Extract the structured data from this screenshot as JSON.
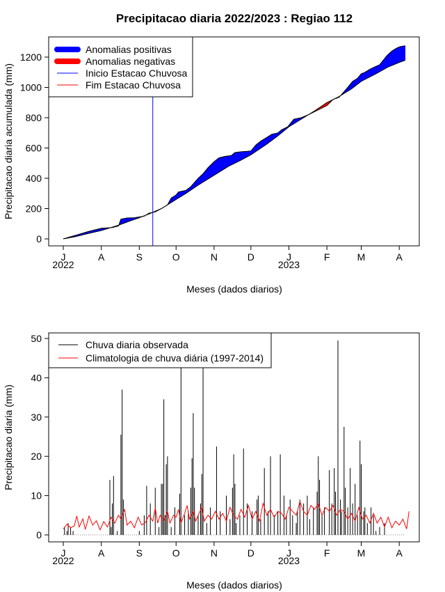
{
  "chart_data": [
    {
      "type": "area",
      "title": "Precipitacao diaria 2022/2023 : Regiao 112",
      "xlabel": "Meses (dados diarios)",
      "ylabel": "Precipitacao diaria acumulada (mm)",
      "ylim": [
        0,
        1300
      ],
      "yticks": [
        0,
        200,
        400,
        600,
        800,
        1000,
        1200
      ],
      "xlim_days": [
        0,
        283
      ],
      "month_ticks": [
        {
          "label": "J",
          "day": 0
        },
        {
          "label": "A",
          "day": 31
        },
        {
          "label": "S",
          "day": 62
        },
        {
          "label": "O",
          "day": 92
        },
        {
          "label": "N",
          "day": 123
        },
        {
          "label": "D",
          "day": 153
        },
        {
          "label": "J",
          "day": 184
        },
        {
          "label": "F",
          "day": 215
        },
        {
          "label": "M",
          "day": 243
        },
        {
          "label": "A",
          "day": 274
        }
      ],
      "year_labels": [
        {
          "label": "2022",
          "day": 0
        },
        {
          "label": "2023",
          "day": 184
        }
      ],
      "rainy_season_start_day": 73,
      "legend": [
        {
          "label": "Anomalias positivas",
          "color": "#0000ff"
        },
        {
          "label": "Anomalias negativas",
          "color": "#ff0000"
        },
        {
          "label": "Inicio Estacao Chuvosa",
          "color": "#0000ff"
        },
        {
          "label": "Fim Estacao Chuvosa",
          "color": "#ff0000"
        }
      ],
      "legend_position": "top-left",
      "series": [
        {
          "name": "Climatologia acumulada",
          "points": [
            [
              0,
              0
            ],
            [
              10,
              15
            ],
            [
              20,
              35
            ],
            [
              31,
              55
            ],
            [
              45,
              90
            ],
            [
              55,
              120
            ],
            [
              62,
              140
            ],
            [
              70,
              165
            ],
            [
              80,
              200
            ],
            [
              92,
              260
            ],
            [
              100,
              300
            ],
            [
              110,
              355
            ],
            [
              123,
              420
            ],
            [
              135,
              480
            ],
            [
              145,
              520
            ],
            [
              153,
              555
            ],
            [
              165,
              620
            ],
            [
              175,
              680
            ],
            [
              184,
              740
            ],
            [
              195,
              795
            ],
            [
              205,
              845
            ],
            [
              215,
              900
            ],
            [
              225,
              940
            ],
            [
              235,
              990
            ],
            [
              243,
              1040
            ],
            [
              255,
              1090
            ],
            [
              265,
              1135
            ],
            [
              274,
              1165
            ],
            [
              279,
              1180
            ]
          ]
        },
        {
          "name": "Observado acumulado",
          "points": [
            [
              0,
              0
            ],
            [
              5,
              12
            ],
            [
              12,
              28
            ],
            [
              20,
              48
            ],
            [
              31,
              70
            ],
            [
              40,
              75
            ],
            [
              45,
              85
            ],
            [
              47,
              130
            ],
            [
              52,
              138
            ],
            [
              58,
              140
            ],
            [
              62,
              145
            ],
            [
              66,
              150
            ],
            [
              70,
              170
            ],
            [
              75,
              178
            ],
            [
              80,
              200
            ],
            [
              85,
              225
            ],
            [
              88,
              270
            ],
            [
              92,
              290
            ],
            [
              94,
              310
            ],
            [
              100,
              320
            ],
            [
              104,
              345
            ],
            [
              110,
              400
            ],
            [
              114,
              430
            ],
            [
              118,
              470
            ],
            [
              123,
              510
            ],
            [
              127,
              535
            ],
            [
              132,
              545
            ],
            [
              137,
              550
            ],
            [
              140,
              570
            ],
            [
              145,
              575
            ],
            [
              150,
              578
            ],
            [
              153,
              580
            ],
            [
              157,
              620
            ],
            [
              161,
              645
            ],
            [
              166,
              670
            ],
            [
              170,
              690
            ],
            [
              175,
              700
            ],
            [
              178,
              720
            ],
            [
              183,
              740
            ],
            [
              188,
              790
            ],
            [
              194,
              800
            ],
            [
              200,
              820
            ],
            [
              205,
              840
            ],
            [
              210,
              860
            ],
            [
              215,
              880
            ],
            [
              220,
              920
            ],
            [
              225,
              935
            ],
            [
              232,
              1000
            ],
            [
              236,
              1040
            ],
            [
              240,
              1060
            ],
            [
              243,
              1090
            ],
            [
              246,
              1100
            ],
            [
              250,
              1120
            ],
            [
              254,
              1135
            ],
            [
              258,
              1150
            ],
            [
              264,
              1210
            ],
            [
              268,
              1240
            ],
            [
              272,
              1260
            ],
            [
              275,
              1270
            ],
            [
              279,
              1275
            ]
          ]
        }
      ]
    },
    {
      "type": "bar",
      "title": "",
      "xlabel": "Meses (dados diarios)",
      "ylabel": "Precipitacao diaria (mm)",
      "ylim": [
        0,
        50
      ],
      "yticks": [
        0,
        10,
        20,
        30,
        40,
        50
      ],
      "xlim_days": [
        0,
        283
      ],
      "month_ticks": [
        {
          "label": "J",
          "day": 0
        },
        {
          "label": "A",
          "day": 31
        },
        {
          "label": "S",
          "day": 62
        },
        {
          "label": "O",
          "day": 92
        },
        {
          "label": "N",
          "day": 123
        },
        {
          "label": "D",
          "day": 153
        },
        {
          "label": "J",
          "day": 184
        },
        {
          "label": "F",
          "day": 215
        },
        {
          "label": "M",
          "day": 243
        },
        {
          "label": "A",
          "day": 274
        }
      ],
      "year_labels": [
        {
          "label": "2022",
          "day": 0
        },
        {
          "label": "2023",
          "day": 184
        }
      ],
      "legend": [
        {
          "label": "Chuva diaria observada",
          "color": "#000000"
        },
        {
          "label": "Climatologia de chuva diária (1997-2014)",
          "color": "#ff0000"
        }
      ],
      "legend_position": "top-left",
      "observed_bars": [
        [
          1,
          2
        ],
        [
          3,
          1
        ],
        [
          4,
          3
        ],
        [
          6,
          2
        ],
        [
          8,
          1
        ],
        [
          38,
          14
        ],
        [
          39,
          2
        ],
        [
          40,
          8
        ],
        [
          41,
          15
        ],
        [
          44,
          1
        ],
        [
          47,
          25.5
        ],
        [
          48,
          37
        ],
        [
          49,
          9
        ],
        [
          62,
          1
        ],
        [
          66,
          5
        ],
        [
          68,
          12.5
        ],
        [
          71,
          8
        ],
        [
          75,
          12
        ],
        [
          78,
          2
        ],
        [
          80,
          13
        ],
        [
          81,
          13
        ],
        [
          82,
          34.5
        ],
        [
          83,
          5
        ],
        [
          84,
          18
        ],
        [
          85,
          20
        ],
        [
          88,
          2
        ],
        [
          91,
          7
        ],
        [
          95,
          10.5
        ],
        [
          96,
          43
        ],
        [
          99,
          5
        ],
        [
          102,
          6
        ],
        [
          104,
          12
        ],
        [
          105,
          19.5
        ],
        [
          106,
          31
        ],
        [
          107,
          12
        ],
        [
          110,
          5
        ],
        [
          112,
          8
        ],
        [
          113,
          15.5
        ],
        [
          114,
          44
        ],
        [
          117,
          3
        ],
        [
          120,
          7
        ],
        [
          125,
          22.5
        ],
        [
          128,
          6
        ],
        [
          133,
          10
        ],
        [
          136,
          4
        ],
        [
          138,
          12
        ],
        [
          139,
          20.5
        ],
        [
          140,
          13
        ],
        [
          141,
          3
        ],
        [
          144,
          5
        ],
        [
          147,
          22
        ],
        [
          150,
          8
        ],
        [
          154,
          6
        ],
        [
          158,
          9
        ],
        [
          159,
          10
        ],
        [
          161,
          4
        ],
        [
          164,
          17
        ],
        [
          167,
          6
        ],
        [
          169,
          20
        ],
        [
          172,
          5
        ],
        [
          175,
          6
        ],
        [
          177,
          20.5
        ],
        [
          180,
          10
        ],
        [
          182,
          5
        ],
        [
          185,
          9
        ],
        [
          187,
          5
        ],
        [
          190,
          3
        ],
        [
          191,
          6
        ],
        [
          193,
          9
        ],
        [
          196,
          8
        ],
        [
          199,
          10
        ],
        [
          201,
          4
        ],
        [
          204,
          7
        ],
        [
          207,
          11
        ],
        [
          208,
          20
        ],
        [
          209,
          14
        ],
        [
          211,
          5
        ],
        [
          213,
          7
        ],
        [
          217,
          16.5
        ],
        [
          219,
          8
        ],
        [
          221,
          17
        ],
        [
          222,
          11
        ],
        [
          224,
          49.5
        ],
        [
          226,
          9
        ],
        [
          227,
          6
        ],
        [
          229,
          27.5
        ],
        [
          230,
          12
        ],
        [
          232,
          7
        ],
        [
          234,
          17
        ],
        [
          236,
          8
        ],
        [
          238,
          13
        ],
        [
          240,
          5
        ],
        [
          242,
          24
        ],
        [
          243,
          18
        ],
        [
          245,
          6
        ],
        [
          246,
          7
        ],
        [
          248,
          3
        ],
        [
          251,
          7
        ],
        [
          253,
          5
        ],
        [
          255,
          1
        ],
        [
          258,
          2
        ],
        [
          262,
          3
        ]
      ],
      "climatology_line": [
        [
          0,
          1.5
        ],
        [
          3,
          2.7
        ],
        [
          6,
          1.8
        ],
        [
          9,
          2.3
        ],
        [
          11,
          4.8
        ],
        [
          13,
          2
        ],
        [
          16,
          4.1
        ],
        [
          18,
          1.4
        ],
        [
          21,
          4.8
        ],
        [
          24,
          2.5
        ],
        [
          27,
          3.6
        ],
        [
          30,
          1.3
        ],
        [
          33,
          3.4
        ],
        [
          36,
          2
        ],
        [
          39,
          4.5
        ],
        [
          42,
          3
        ],
        [
          45,
          5
        ],
        [
          47,
          4
        ],
        [
          50,
          6.5
        ],
        [
          52,
          2.5
        ],
        [
          55,
          3.5
        ],
        [
          58,
          1.8
        ],
        [
          61,
          4.5
        ],
        [
          64,
          2.5
        ],
        [
          67,
          3.2
        ],
        [
          70,
          5
        ],
        [
          73,
          3.5
        ],
        [
          75,
          6.8
        ],
        [
          77,
          3
        ],
        [
          79,
          5
        ],
        [
          82,
          3.5
        ],
        [
          85,
          6
        ],
        [
          87,
          3
        ],
        [
          90,
          5
        ],
        [
          92,
          4.5
        ],
        [
          94,
          6.5
        ],
        [
          96,
          3
        ],
        [
          99,
          5.5
        ],
        [
          101,
          7.5
        ],
        [
          103,
          4
        ],
        [
          106,
          6
        ],
        [
          108,
          3.5
        ],
        [
          110,
          5
        ],
        [
          113,
          7
        ],
        [
          115,
          3.5
        ],
        [
          118,
          5
        ],
        [
          121,
          4
        ],
        [
          124,
          6
        ],
        [
          127,
          4
        ],
        [
          130,
          5.5
        ],
        [
          133,
          3.5
        ],
        [
          136,
          7
        ],
        [
          139,
          5
        ],
        [
          142,
          4
        ],
        [
          145,
          6.5
        ],
        [
          148,
          4.5
        ],
        [
          151,
          7.5
        ],
        [
          154,
          4
        ],
        [
          157,
          6
        ],
        [
          160,
          3.5
        ],
        [
          163,
          8
        ],
        [
          166,
          5
        ],
        [
          169,
          6.5
        ],
        [
          172,
          4.5
        ],
        [
          175,
          6
        ],
        [
          178,
          5.5
        ],
        [
          181,
          4
        ],
        [
          184,
          7
        ],
        [
          187,
          6
        ],
        [
          190,
          5
        ],
        [
          193,
          8.5
        ],
        [
          196,
          6
        ],
        [
          199,
          5
        ],
        [
          202,
          7.5
        ],
        [
          205,
          6.5
        ],
        [
          208,
          8
        ],
        [
          211,
          5
        ],
        [
          214,
          7
        ],
        [
          217,
          6
        ],
        [
          220,
          7.5
        ],
        [
          223,
          5
        ],
        [
          226,
          6.5
        ],
        [
          229,
          6
        ],
        [
          232,
          4
        ],
        [
          235,
          5.5
        ],
        [
          238,
          3.5
        ],
        [
          241,
          7
        ],
        [
          244,
          4
        ],
        [
          247,
          5
        ],
        [
          250,
          3
        ],
        [
          253,
          5.5
        ],
        [
          256,
          3
        ],
        [
          259,
          4.5
        ],
        [
          262,
          2
        ],
        [
          265,
          4.5
        ],
        [
          268,
          1.8
        ],
        [
          271,
          3.5
        ],
        [
          274,
          2.5
        ],
        [
          277,
          4
        ],
        [
          280,
          1.5
        ],
        [
          282,
          6
        ]
      ]
    }
  ]
}
